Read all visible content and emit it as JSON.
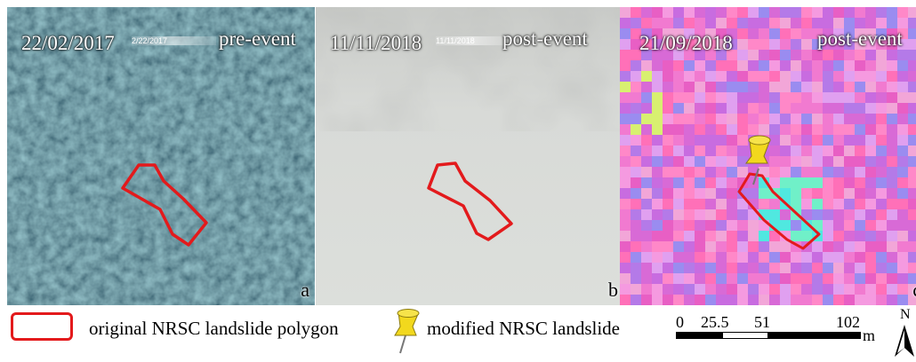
{
  "panels": [
    {
      "id": "a",
      "date": "22/02/2017",
      "event": "pre-event",
      "inset_date": "2/22/2017",
      "letter": "a"
    },
    {
      "id": "b",
      "date": "11/11/2018",
      "event": "post-event",
      "inset_date": "11/11/2018",
      "letter": "b"
    },
    {
      "id": "c",
      "date": "21/09/2018",
      "event": "post-event",
      "letter": "c"
    }
  ],
  "legend": {
    "original_polygon_label": "original NRSC landslide polygon",
    "modified_label": "modified NRSC landslide",
    "scale_ticks": [
      "0",
      "25.5",
      "51",
      "102"
    ],
    "scale_unit": "m",
    "north_label": "N"
  },
  "colors": {
    "polygon_outline": "#e31a1c",
    "pushpin": "#f2d81d",
    "forest": "#2a4a56",
    "cloud": "#d7dad6"
  },
  "icons": [
    "pushpin-icon",
    "north-arrow-icon"
  ]
}
